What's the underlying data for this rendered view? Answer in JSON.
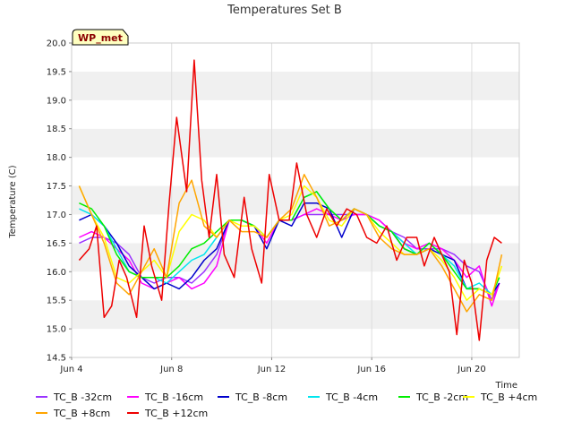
{
  "chart_data": {
    "type": "line",
    "title": "Temperatures Set B",
    "xlabel": "Time",
    "ylabel": "Temperature (C)",
    "ylim": [
      14.5,
      20.0
    ],
    "xlim": [
      4,
      21.9
    ],
    "yticks": [
      "14.5",
      "15.0",
      "15.5",
      "16.0",
      "16.5",
      "17.0",
      "17.5",
      "18.0",
      "18.5",
      "19.0",
      "19.5",
      "20.0"
    ],
    "xticks": [
      {
        "value": 4,
        "label": "Jun 4"
      },
      {
        "value": 8,
        "label": "Jun 8"
      },
      {
        "value": 12,
        "label": "Jun 12"
      },
      {
        "value": 16,
        "label": "Jun 16"
      },
      {
        "value": 20,
        "label": "Jun 20"
      }
    ],
    "badge": "WP_met",
    "grid": "horizontal bands",
    "legend_position": "bottom",
    "series": [
      {
        "name": "TC_B -32cm",
        "color": "#9933ff",
        "x": [
          4.3,
          4.8,
          5.3,
          5.8,
          6.3,
          6.8,
          7.3,
          7.8,
          8.3,
          8.8,
          9.3,
          9.8,
          10.3,
          10.8,
          11.3,
          11.8,
          12.3,
          12.8,
          13.3,
          13.8,
          14.3,
          14.8,
          15.3,
          15.8,
          16.3,
          16.8,
          17.3,
          17.8,
          18.3,
          18.8,
          19.3,
          19.8,
          20.3,
          20.8,
          21.1
        ],
        "y": [
          16.5,
          16.6,
          16.6,
          16.5,
          16.3,
          15.9,
          15.8,
          15.9,
          15.9,
          15.8,
          16.0,
          16.3,
          16.9,
          16.9,
          16.8,
          16.6,
          16.9,
          16.9,
          17.0,
          17.0,
          17.0,
          17.0,
          17.0,
          17.0,
          16.9,
          16.7,
          16.6,
          16.4,
          16.4,
          16.4,
          16.3,
          16.1,
          16.0,
          15.5,
          15.8
        ]
      },
      {
        "name": "TC_B -16cm",
        "color": "#ff00ff",
        "x": [
          4.3,
          4.8,
          5.3,
          5.8,
          6.3,
          6.8,
          7.3,
          7.8,
          8.3,
          8.8,
          9.3,
          9.8,
          10.3,
          10.8,
          11.3,
          11.8,
          12.3,
          12.8,
          13.3,
          13.8,
          14.3,
          14.8,
          15.3,
          15.8,
          16.3,
          16.8,
          17.3,
          17.8,
          18.3,
          18.8,
          19.3,
          19.8,
          20.3,
          20.8,
          21.1
        ],
        "y": [
          16.6,
          16.7,
          16.6,
          16.4,
          16.2,
          15.8,
          15.7,
          15.8,
          15.9,
          15.7,
          15.8,
          16.1,
          16.9,
          16.9,
          16.8,
          16.5,
          16.9,
          16.9,
          17.0,
          17.1,
          17.0,
          16.9,
          17.0,
          17.0,
          16.9,
          16.7,
          16.5,
          16.4,
          16.5,
          16.4,
          16.2,
          15.9,
          16.1,
          15.4,
          15.8
        ]
      },
      {
        "name": "TC_B -8cm",
        "color": "#0000cc",
        "x": [
          4.3,
          4.8,
          5.3,
          5.8,
          6.3,
          6.8,
          7.3,
          7.8,
          8.3,
          8.8,
          9.3,
          9.8,
          10.3,
          10.8,
          11.3,
          11.8,
          12.3,
          12.8,
          13.3,
          13.8,
          14.3,
          14.8,
          15.3,
          15.8,
          16.3,
          16.8,
          17.3,
          17.8,
          18.3,
          18.8,
          19.3,
          19.8,
          20.3,
          20.8,
          21.1
        ],
        "y": [
          16.9,
          17.0,
          16.8,
          16.5,
          16.1,
          15.9,
          15.7,
          15.8,
          15.7,
          15.9,
          16.2,
          16.4,
          16.9,
          16.9,
          16.8,
          16.4,
          16.9,
          16.8,
          17.2,
          17.2,
          17.1,
          16.6,
          17.1,
          17.0,
          16.8,
          16.7,
          16.4,
          16.3,
          16.4,
          16.3,
          16.2,
          15.7,
          15.7,
          15.6,
          15.8
        ]
      },
      {
        "name": "TC_B -4cm",
        "color": "#00e5ee",
        "x": [
          4.3,
          4.8,
          5.3,
          5.8,
          6.3,
          6.8,
          7.3,
          7.8,
          8.3,
          8.8,
          9.3,
          9.8,
          10.3,
          10.8,
          11.3,
          11.8,
          12.3,
          12.8,
          13.3,
          13.8,
          14.3,
          14.8,
          15.3,
          15.8,
          16.3,
          16.8,
          17.3,
          17.8,
          18.3,
          18.8,
          19.3,
          19.8,
          20.3,
          20.8,
          21.1
        ],
        "y": [
          17.1,
          17.0,
          16.8,
          16.4,
          16.0,
          15.9,
          15.9,
          15.8,
          16.0,
          16.2,
          16.3,
          16.6,
          16.9,
          16.9,
          16.8,
          16.6,
          16.9,
          16.9,
          17.3,
          17.4,
          17.1,
          16.9,
          17.1,
          17.0,
          16.8,
          16.7,
          16.5,
          16.3,
          16.5,
          16.3,
          16.1,
          15.7,
          15.8,
          15.6,
          15.9
        ]
      },
      {
        "name": "TC_B -2cm",
        "color": "#00ee00",
        "x": [
          4.3,
          4.8,
          5.3,
          5.8,
          6.3,
          6.8,
          7.3,
          7.8,
          8.3,
          8.8,
          9.3,
          9.8,
          10.3,
          10.8,
          11.3,
          11.8,
          12.3,
          12.8,
          13.3,
          13.8,
          14.3,
          14.8,
          15.3,
          15.8,
          16.3,
          16.8,
          17.3,
          17.8,
          18.3,
          18.8,
          19.3,
          19.8,
          20.3,
          20.8,
          21.1
        ],
        "y": [
          17.2,
          17.1,
          16.8,
          16.3,
          16.0,
          15.9,
          15.9,
          15.9,
          16.1,
          16.4,
          16.5,
          16.7,
          16.9,
          16.9,
          16.8,
          16.6,
          16.9,
          16.9,
          17.3,
          17.4,
          17.1,
          16.9,
          17.1,
          17.0,
          16.8,
          16.7,
          16.4,
          16.3,
          16.5,
          16.3,
          16.0,
          15.7,
          15.7,
          15.6,
          15.9
        ]
      },
      {
        "name": "TC_B +4cm",
        "color": "#ffff00",
        "x": [
          4.3,
          4.8,
          5.3,
          5.8,
          6.3,
          6.8,
          7.3,
          7.8,
          8.3,
          8.8,
          9.3,
          9.8,
          10.3,
          10.8,
          11.3,
          11.8,
          12.3,
          12.8,
          13.3,
          13.8,
          14.3,
          14.8,
          15.3,
          15.8,
          16.3,
          16.8,
          17.3,
          17.8,
          18.3,
          18.8,
          19.3,
          19.8,
          20.3,
          20.8,
          21.2
        ],
        "y": [
          17.5,
          17.0,
          16.6,
          15.9,
          15.8,
          16.0,
          16.2,
          15.9,
          16.7,
          17.0,
          16.9,
          16.6,
          16.9,
          16.8,
          16.8,
          16.6,
          16.9,
          17.0,
          17.5,
          17.3,
          16.9,
          16.8,
          17.1,
          17.0,
          16.7,
          16.5,
          16.3,
          16.3,
          16.4,
          16.2,
          15.9,
          15.5,
          15.7,
          15.6,
          16.1
        ]
      },
      {
        "name": "TC_B +8cm",
        "color": "#ffa500",
        "x": [
          4.3,
          4.8,
          5.3,
          5.8,
          6.3,
          6.8,
          7.3,
          7.8,
          8.3,
          8.8,
          9.3,
          9.8,
          10.3,
          10.8,
          11.3,
          11.8,
          12.3,
          12.8,
          13.3,
          13.8,
          14.3,
          14.8,
          15.3,
          15.8,
          16.3,
          16.8,
          17.3,
          17.8,
          18.3,
          18.8,
          19.3,
          19.8,
          20.3,
          20.8,
          21.2
        ],
        "y": [
          17.5,
          17.0,
          16.5,
          15.8,
          15.6,
          16.0,
          16.4,
          15.9,
          17.2,
          17.6,
          16.8,
          16.6,
          16.9,
          16.7,
          16.7,
          16.6,
          16.9,
          17.1,
          17.7,
          17.3,
          16.8,
          16.9,
          17.1,
          17.0,
          16.6,
          16.4,
          16.3,
          16.3,
          16.4,
          16.1,
          15.7,
          15.3,
          15.6,
          15.5,
          16.3
        ]
      },
      {
        "name": "TC_B +12cm",
        "color": "#ee0000",
        "x": [
          4.3,
          4.7,
          5.0,
          5.3,
          5.6,
          5.9,
          6.2,
          6.6,
          6.9,
          7.2,
          7.6,
          7.9,
          8.2,
          8.6,
          8.9,
          9.2,
          9.5,
          9.8,
          10.1,
          10.5,
          10.9,
          11.2,
          11.6,
          11.9,
          12.3,
          12.7,
          13.0,
          13.4,
          13.8,
          14.2,
          14.6,
          15.0,
          15.4,
          15.8,
          16.2,
          16.6,
          17.0,
          17.4,
          17.8,
          18.1,
          18.5,
          18.8,
          19.1,
          19.4,
          19.7,
          20.0,
          20.3,
          20.6,
          20.9,
          21.2
        ],
        "y": [
          16.2,
          16.4,
          16.8,
          15.2,
          15.4,
          16.2,
          15.9,
          15.2,
          16.8,
          16.1,
          15.5,
          17.2,
          18.7,
          17.4,
          19.7,
          17.6,
          16.6,
          17.7,
          16.3,
          15.9,
          17.3,
          16.4,
          15.8,
          17.7,
          16.9,
          16.9,
          17.9,
          17.0,
          16.6,
          17.1,
          16.8,
          17.1,
          17.0,
          16.6,
          16.5,
          16.8,
          16.2,
          16.6,
          16.6,
          16.1,
          16.6,
          16.3,
          16.0,
          14.9,
          16.2,
          15.8,
          14.8,
          16.2,
          16.6,
          16.5
        ]
      }
    ]
  }
}
